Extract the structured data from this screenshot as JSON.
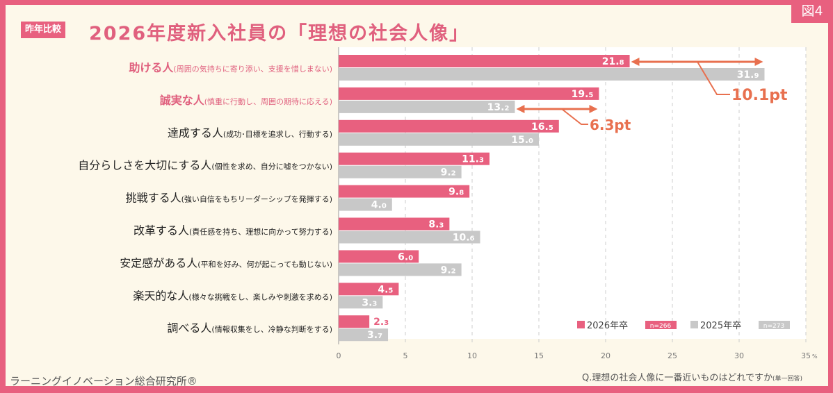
{
  "header": {
    "badge": "昨年比較",
    "title": "2026年度新入社員の「理想の社会人像」",
    "figure_label": "図4"
  },
  "footer": {
    "source": "ラーニングイノベーション総合研究所®",
    "question": "Q.理想の社会人像に一番近いものはどれですか",
    "question_note": "(単一回答)"
  },
  "colors": {
    "series_2026": "#e8607f",
    "series_2025": "#c8c8c8",
    "annotation": "#e8704f",
    "highlight_label": "#e0607e"
  },
  "chart_data": {
    "type": "bar",
    "orientation": "horizontal",
    "categories": [
      {
        "name": "助ける人",
        "desc": "(周囲の気持ちに寄り添い、支援を惜しまない)",
        "highlight": true
      },
      {
        "name": "誠実な人",
        "desc": "(慎重に行動し、周囲の期待に応える)",
        "highlight": true
      },
      {
        "name": "達成する人",
        "desc": "(成功･目標を追求し、行動する)",
        "highlight": false
      },
      {
        "name": "自分らしさを大切にする人",
        "desc": "(個性を求め、自分に嘘をつかない)",
        "highlight": false
      },
      {
        "name": "挑戦する人",
        "desc": "(強い自信をもちリーダーシップを発揮する)",
        "highlight": false
      },
      {
        "name": "改革する人",
        "desc": "(責任感を持ち、理想に向かって努力する)",
        "highlight": false
      },
      {
        "name": "安定感がある人",
        "desc": "(平和を好み、何が起こっても動じない)",
        "highlight": false
      },
      {
        "name": "楽天的な人",
        "desc": "(様々な挑戦をし、楽しみや刺激を求める)",
        "highlight": false
      },
      {
        "name": "調べる人",
        "desc": "(情報収集をし、冷静な判断をする)",
        "highlight": false
      }
    ],
    "series": [
      {
        "name": "2026年卒",
        "n": "n=266",
        "values": [
          21.8,
          19.5,
          16.5,
          11.3,
          9.8,
          8.3,
          6.0,
          4.5,
          2.3
        ]
      },
      {
        "name": "2025年卒",
        "n": "n=273",
        "values": [
          31.9,
          13.2,
          15.0,
          9.2,
          4.0,
          10.6,
          9.2,
          3.3,
          3.7
        ]
      }
    ],
    "xlim": [
      0,
      35
    ],
    "xticks": [
      0,
      5,
      10,
      15,
      20,
      25,
      30,
      35
    ],
    "x_unit": "%",
    "grid": "vertical dashed",
    "legend": "bottom-right",
    "annotations": [
      {
        "category_index": 0,
        "label": "10.1pt"
      },
      {
        "category_index": 1,
        "label": "6.3pt"
      }
    ]
  }
}
